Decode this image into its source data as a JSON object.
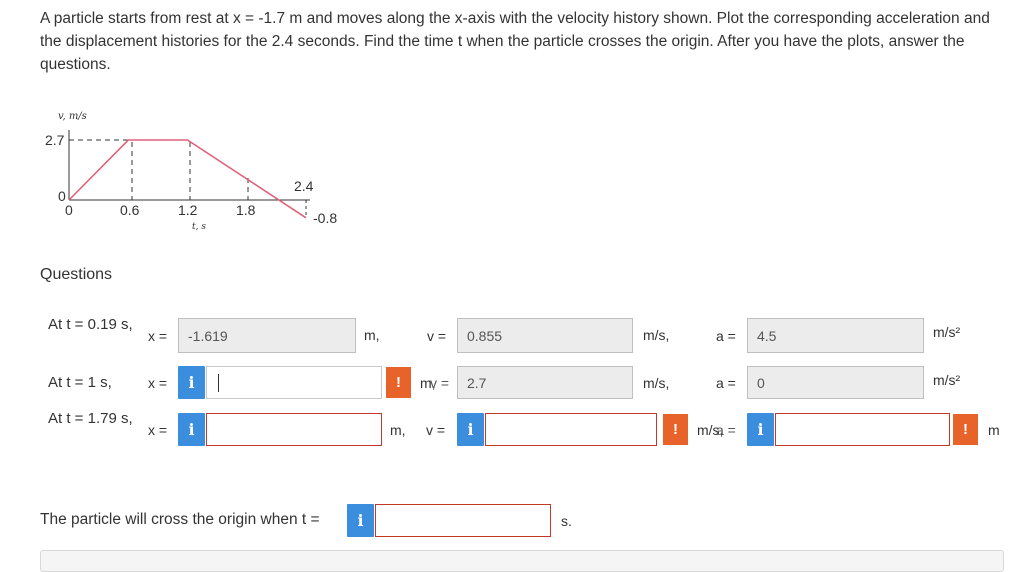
{
  "problem": {
    "text": "A particle starts from rest at x = -1.7 m and moves along the x-axis with the velocity history shown. Plot the corresponding acceleration and the displacement histories for the 2.4 seconds. Find the time t when the particle crosses the origin. After you have the plots, answer the questions."
  },
  "plot": {
    "ylabel": "v, m/s",
    "xlabel": "t, s",
    "y_value_label": "2.7",
    "y_zero_label": "0",
    "neg_value_label": "-0.8",
    "x_ticks": [
      "0",
      "0.6",
      "1.2",
      "1.8",
      "2.4"
    ]
  },
  "chart_data": {
    "type": "line",
    "x": [
      0,
      0.6,
      1.2,
      2.4
    ],
    "y": [
      0,
      2.7,
      2.7,
      -0.8
    ],
    "xlabel": "t, s",
    "ylabel": "v, m/s",
    "xticks": [
      0,
      0.6,
      1.2,
      1.8,
      2.4
    ],
    "yticks": [
      2.7,
      0,
      -0.8
    ],
    "line_color": "#e0607a"
  },
  "questions": {
    "title": "Questions",
    "rows": [
      {
        "label": "At t = 0.19 s,",
        "x_eq": "x =",
        "x_value": "-1.619",
        "x_unit": "m,",
        "v_eq": "v =",
        "v_value": "0.855",
        "v_unit": "m/s,",
        "a_eq": "a =",
        "a_value": "4.5",
        "a_unit": "m/s²"
      },
      {
        "label": "At t = 1 s,",
        "x_eq": "x =",
        "x_value": "",
        "x_unit": "m,",
        "v_eq": "v =",
        "v_value": "2.7",
        "v_unit": "m/s,",
        "a_eq": "a =",
        "a_value": "0",
        "a_unit": "m/s²"
      },
      {
        "label": "At t = 1.79 s,",
        "x_eq": "x =",
        "x_value": "",
        "x_unit": "m,",
        "v_eq": "v =",
        "v_value": "",
        "v_unit": "m/s,",
        "a_eq": "a =",
        "a_value": "",
        "a_unit": "m"
      }
    ],
    "cross_text": "The particle will cross the origin when t =",
    "cross_value": "",
    "cross_unit": "s.",
    "info_glyph": "i",
    "warn_glyph": "!"
  },
  "colors": {
    "info_button": "#3b8dde",
    "warning": "#e8632a",
    "error_border": "#c0392b",
    "plot_line": "#e0607a"
  }
}
